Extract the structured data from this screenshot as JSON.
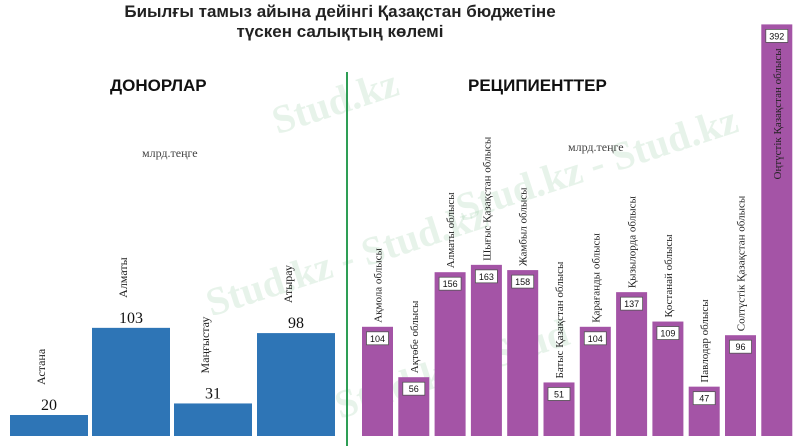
{
  "title_line1": "Биылғы тамыз айына дейінгі Қазақстан бюджетіне",
  "title_line2": "түскен салықтың көлемі",
  "donors_heading": "ДОНОРЛАР",
  "recipients_heading": "РЕЦИПИЕНТТЕР",
  "unit_left": "млрд.теңге",
  "unit_right": "млрд.теңге",
  "watermark": [
    "Stud.kz",
    "Stud.kz - Stud.kz",
    "Stud.kz - Stud.kz",
    "Stud.kz - Stud"
  ],
  "colors": {
    "donors": "#2e75b6",
    "recipients": "#a454a6",
    "divider": "#2e9e55"
  },
  "chart_data": [
    {
      "type": "bar",
      "title": "ДОНОРЛАР",
      "categories": [
        "Астана",
        "Алматы",
        "Маңғыстау",
        "Атырау"
      ],
      "values": [
        20,
        103,
        31,
        98
      ],
      "ylabel": "млрд.теңге",
      "label_style": "plain numbers above bars, rotated category names",
      "grid": false
    },
    {
      "type": "bar",
      "title": "РЕЦИПИЕНТТЕР",
      "categories": [
        "Ақмола облысы",
        "Ақтөбе облысы",
        "Алматы облысы",
        "Шығыс Қазақстан облысы",
        "Жамбыл облысы",
        "Батыс Қазақстан облысы",
        "Қарағанды облысы",
        "Қызылорда облысы",
        "Қостанай облысы",
        "Павлодар облысы",
        "Солтүстік Қазақстан облысы",
        "Оңтүстік Қазақстан облысы"
      ],
      "values": [
        104,
        56,
        156,
        163,
        158,
        51,
        104,
        137,
        109,
        47,
        96,
        392
      ],
      "ylabel": "млрд.теңге",
      "label_style": "boxed numbers inside bars, rotated category names",
      "grid": false
    }
  ]
}
